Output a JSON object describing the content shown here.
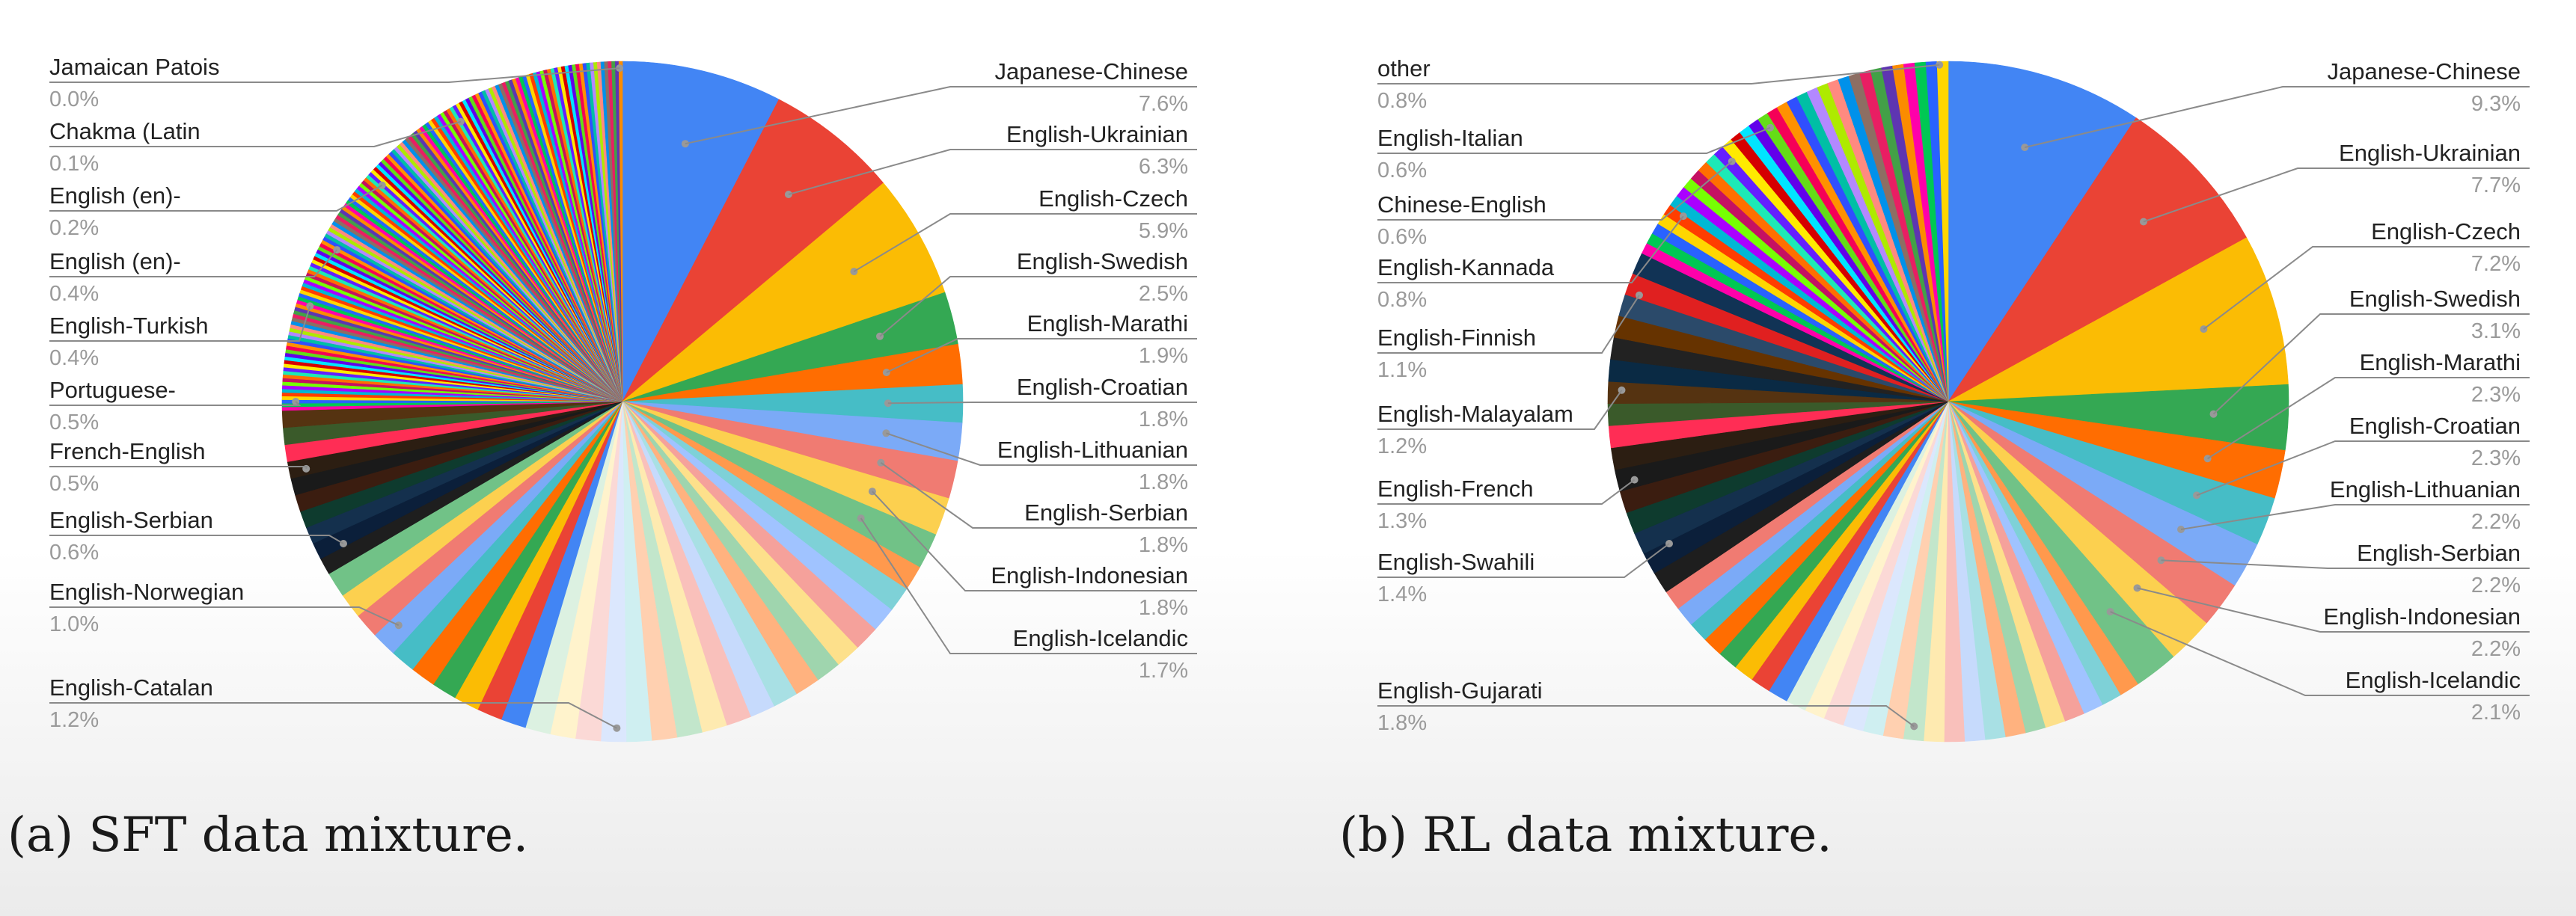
{
  "chart_data": [
    {
      "type": "pie",
      "title": "",
      "caption": "(a) SFT data mixture.",
      "slices": [
        {
          "label": "Japanese-Chinese",
          "value": 7.6,
          "color": "#4285f4"
        },
        {
          "label": "English-Ukrainian",
          "value": 6.3,
          "color": "#ea4335"
        },
        {
          "label": "English-Czech",
          "value": 5.9,
          "color": "#fbbc04"
        },
        {
          "label": "English-Swedish",
          "value": 2.5,
          "color": "#34a853"
        },
        {
          "label": "English-Marathi",
          "value": 1.9,
          "color": "#ff6d01"
        },
        {
          "label": "English-Croatian",
          "value": 1.8,
          "color": "#46bdc6"
        },
        {
          "label": "English-Lithuanian",
          "value": 1.8,
          "color": "#7baaf7"
        },
        {
          "label": "English-Serbian",
          "value": 1.8,
          "color": "#f07b72"
        },
        {
          "label": "English-Indonesian",
          "value": 1.8,
          "color": "#fcd04f"
        },
        {
          "label": "English-Icelandic",
          "value": 1.7,
          "color": "#71c287"
        }
      ],
      "left_labels": [
        {
          "label": "Jamaican Patois",
          "value": 0.0
        },
        {
          "label": "Chakma (Latin",
          "value": 0.1
        },
        {
          "label": "English (en)-",
          "value": 0.2
        },
        {
          "label": "English (en)-",
          "value": 0.4
        },
        {
          "label": "English-Turkish",
          "value": 0.4
        },
        {
          "label": "Portuguese-",
          "value": 0.5
        },
        {
          "label": "French-English",
          "value": 0.5
        },
        {
          "label": "English-Serbian",
          "value": 0.6
        },
        {
          "label": "English-Norwegian",
          "value": 1.0
        },
        {
          "label": "English-Catalan",
          "value": 1.2
        }
      ],
      "percent_suffix": "%",
      "legend": "leader-line labels around pie"
    },
    {
      "type": "pie",
      "title": "",
      "caption": "(b) RL data mixture.",
      "slices": [
        {
          "label": "Japanese-Chinese",
          "value": 9.3,
          "color": "#4285f4"
        },
        {
          "label": "English-Ukrainian",
          "value": 7.7,
          "color": "#ea4335"
        },
        {
          "label": "English-Czech",
          "value": 7.2,
          "color": "#fbbc04"
        },
        {
          "label": "English-Swedish",
          "value": 3.1,
          "color": "#34a853"
        },
        {
          "label": "English-Marathi",
          "value": 2.3,
          "color": "#ff6d01"
        },
        {
          "label": "English-Croatian",
          "value": 2.3,
          "color": "#46bdc6"
        },
        {
          "label": "English-Lithuanian",
          "value": 2.2,
          "color": "#7baaf7"
        },
        {
          "label": "English-Serbian",
          "value": 2.2,
          "color": "#f07b72"
        },
        {
          "label": "English-Indonesian",
          "value": 2.2,
          "color": "#fcd04f"
        },
        {
          "label": "English-Icelandic",
          "value": 2.1,
          "color": "#71c287"
        }
      ],
      "left_labels": [
        {
          "label": "other",
          "value": 0.8
        },
        {
          "label": "English-Italian",
          "value": 0.6
        },
        {
          "label": "Chinese-English",
          "value": 0.6
        },
        {
          "label": "English-Kannada",
          "value": 0.8
        },
        {
          "label": "English-Finnish",
          "value": 1.1
        },
        {
          "label": "English-Malayalam",
          "value": 1.2
        },
        {
          "label": "English-French",
          "value": 1.3
        },
        {
          "label": "English-Swahili",
          "value": 1.4
        },
        {
          "label": "English-Gujarati",
          "value": 1.8
        }
      ],
      "percent_suffix": "%",
      "legend": "leader-line labels around pie"
    }
  ]
}
